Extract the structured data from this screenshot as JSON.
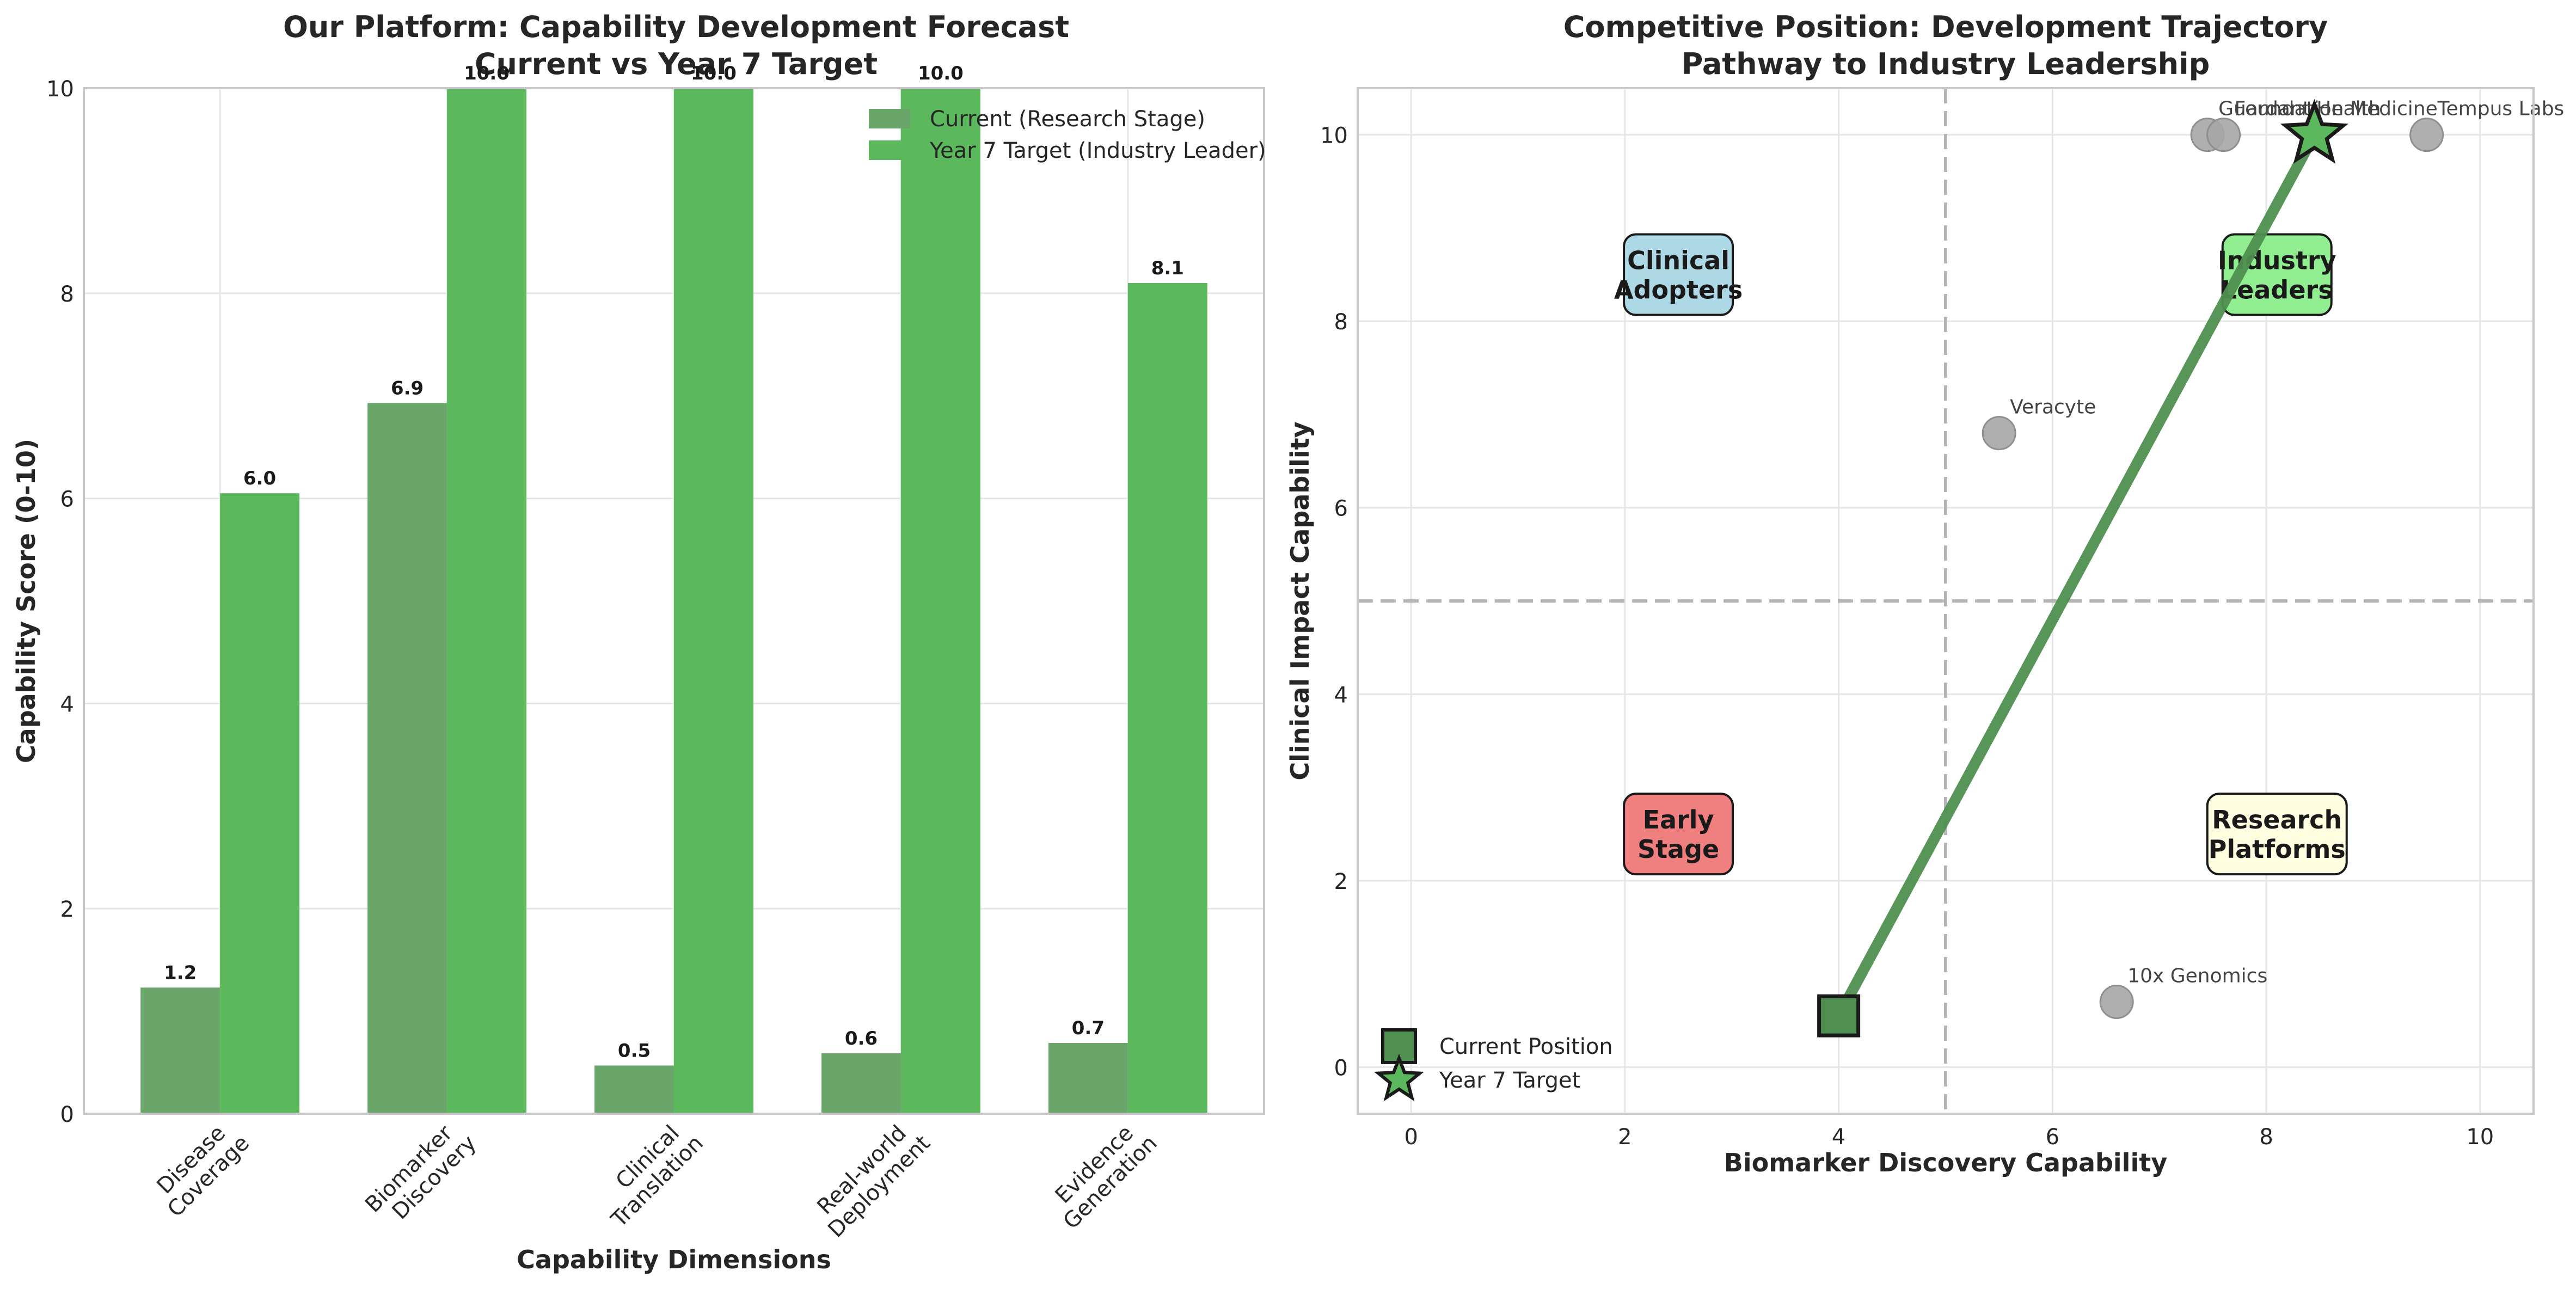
{
  "chart_data": [
    {
      "type": "bar",
      "title": "Our Platform: Capability Development Forecast",
      "subtitle": "Current vs Year 7 Target",
      "xlabel": "Capability Dimensions",
      "ylabel": "Capability Score (0-10)",
      "ylim": [
        0,
        10
      ],
      "yticks": [
        "0",
        "2",
        "4",
        "6",
        "8",
        "10"
      ],
      "grid": true,
      "legend_position": "top-right",
      "categories": [
        [
          "Disease",
          "Coverage"
        ],
        [
          "Biomarker",
          "Discovery"
        ],
        [
          "Clinical",
          "Translation"
        ],
        [
          "Real-world",
          "Deployment"
        ],
        [
          "Evidence",
          "Generation"
        ]
      ],
      "series": [
        {
          "name": "Current (Research Stage)",
          "color": "#6aa56a",
          "values": [
            1.23,
            6.93,
            0.47,
            0.59,
            0.69
          ],
          "labels": [
            "1.2",
            "6.9",
            "0.5",
            "0.6",
            "0.7"
          ]
        },
        {
          "name": "Year 7 Target (Industry Leader)",
          "color": "#5cb85c",
          "values": [
            6.05,
            10.0,
            10.0,
            10.0,
            8.1
          ],
          "labels": [
            "6.0",
            "10.0",
            "10.0",
            "10.0",
            "8.1"
          ]
        }
      ]
    },
    {
      "type": "scatter",
      "title": "Competitive Position: Development Trajectory",
      "subtitle": "Pathway to Industry Leadership",
      "xlabel": "Biomarker Discovery Capability",
      "ylabel": "Clinical Impact Capability",
      "xlim": [
        -0.5,
        10.5
      ],
      "ylim": [
        -0.5,
        10.5
      ],
      "xticks": [
        "0",
        "2",
        "4",
        "6",
        "8",
        "10"
      ],
      "yticks": [
        "0",
        "2",
        "4",
        "6",
        "8",
        "10"
      ],
      "grid": true,
      "legend_position": "bottom-left",
      "divider_x": 5,
      "divider_y": 5,
      "competitors": [
        {
          "name": "10x Genomics",
          "x": 6.6,
          "y": 0.7
        },
        {
          "name": "Veracyte",
          "x": 5.5,
          "y": 6.8
        },
        {
          "name": "Guardant Health",
          "x": 7.45,
          "y": 10.0
        },
        {
          "name": "Foundation Medicine",
          "x": 7.6,
          "y": 10.0
        },
        {
          "name": "Tempus Labs",
          "x": 9.5,
          "y": 10.0
        }
      ],
      "quadrants": [
        {
          "label": [
            "Clinical",
            "Adopters"
          ],
          "x": 2.5,
          "y": 8.5,
          "color": "#add8e6"
        },
        {
          "label": [
            "Industry",
            "Leaders"
          ],
          "x": 8.1,
          "y": 8.5,
          "color": "#90ee90"
        },
        {
          "label": [
            "Early",
            "Stage"
          ],
          "x": 2.5,
          "y": 2.5,
          "color": "#f08080"
        },
        {
          "label": [
            "Research",
            "Platforms"
          ],
          "x": 8.1,
          "y": 2.5,
          "color": "#fffee0"
        }
      ],
      "current": {
        "name": "Current Position",
        "x": 4.0,
        "y": 0.55,
        "color": "#4f8f4f"
      },
      "target": {
        "name": "Year 7 Target",
        "x": 8.45,
        "y": 10.0,
        "color": "#5cb85c"
      },
      "trajectory_color": "#4f8f4f"
    }
  ]
}
